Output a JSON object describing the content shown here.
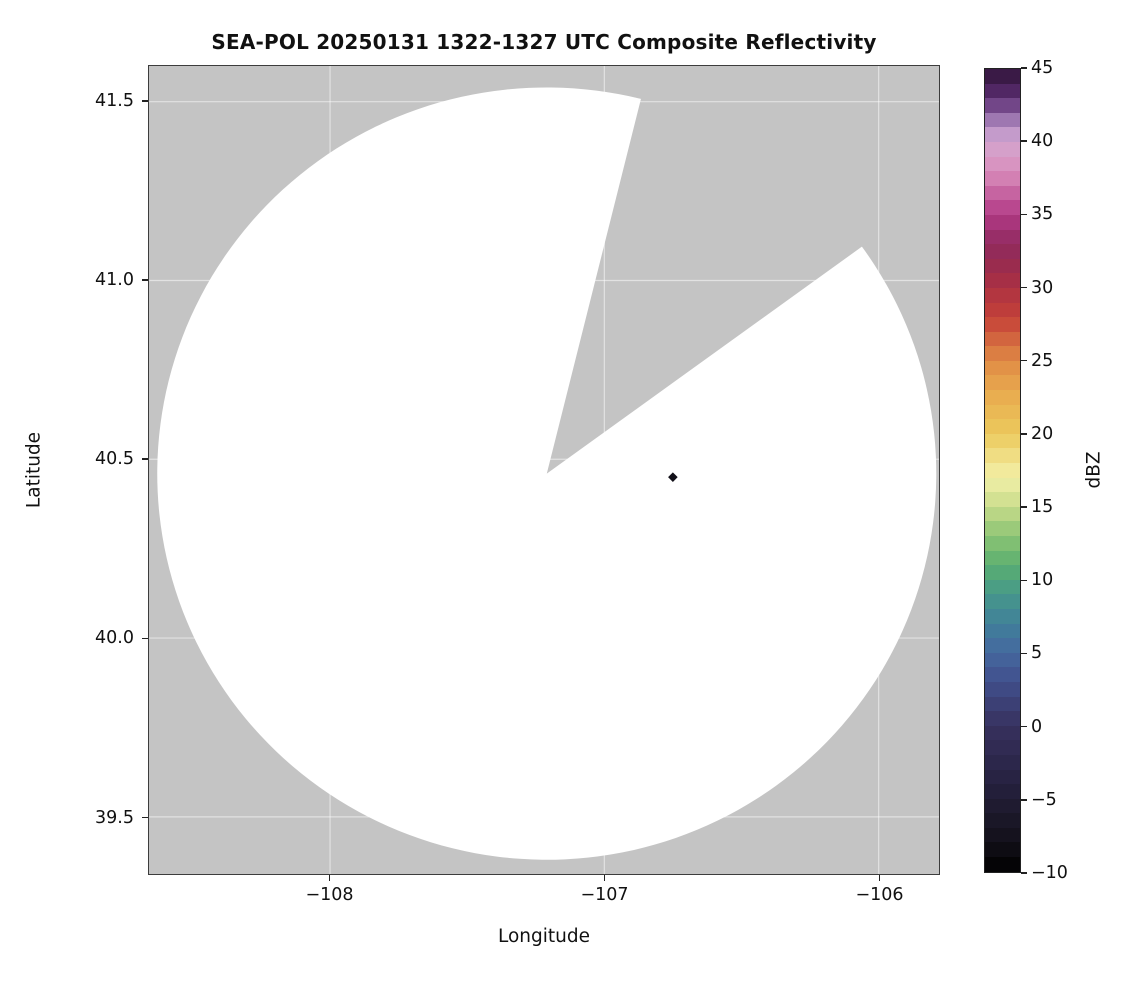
{
  "chart_data": {
    "type": "heatmap",
    "title": "SEA-POL 20250131 1322-1327 UTC Composite Reflectivity",
    "xlabel": "Longitude",
    "ylabel": "Latitude",
    "xlim": [
      -108.66,
      -105.78
    ],
    "ylim": [
      39.34,
      41.6
    ],
    "xtick_values": [
      -108,
      -107,
      -106
    ],
    "xtick_labels": [
      "−108",
      "−107",
      "−106"
    ],
    "ytick_values": [
      39.5,
      40.0,
      40.5,
      41.0,
      41.5
    ],
    "ytick_labels": [
      "39.5",
      "40.0",
      "40.5",
      "41.0",
      "41.5"
    ],
    "grid": true,
    "gridline_color": "rgba(255,255,255,0.5)",
    "radar_coverage": {
      "center_lon": -107.21,
      "center_lat": 40.46,
      "radius_lon_deg": 1.42,
      "radius_lat_deg": 1.08,
      "blocked_sector_azimuth_deg": [
        14,
        54
      ],
      "coverage_fill_color": "#ffffff",
      "nodata_color": "#c4c4c4"
    },
    "echo_points": [
      {
        "lon": -106.75,
        "lat": 40.45,
        "color": "#121019",
        "approx_dbz": -10
      }
    ],
    "colorbar": {
      "label": "dBZ",
      "min": -10,
      "max": 45,
      "ticks": [
        -10,
        -5,
        0,
        5,
        10,
        15,
        20,
        25,
        30,
        35,
        40,
        45
      ],
      "tick_labels": [
        "−10",
        "−5",
        "0",
        "5",
        "10",
        "15",
        "20",
        "25",
        "30",
        "35",
        "40",
        "45"
      ],
      "stops": [
        {
          "value": -10,
          "color": "#000000"
        },
        {
          "value": -8,
          "color": "#121019"
        },
        {
          "value": -5,
          "color": "#211d35"
        },
        {
          "value": -3,
          "color": "#2a2547"
        },
        {
          "value": 0,
          "color": "#37315e"
        },
        {
          "value": 3,
          "color": "#414f8c"
        },
        {
          "value": 5,
          "color": "#45689f"
        },
        {
          "value": 7,
          "color": "#40809a"
        },
        {
          "value": 9,
          "color": "#46988a"
        },
        {
          "value": 11,
          "color": "#5aae70"
        },
        {
          "value": 13,
          "color": "#8cc474"
        },
        {
          "value": 15,
          "color": "#c8dc8a"
        },
        {
          "value": 17,
          "color": "#f3f0a9"
        },
        {
          "value": 20,
          "color": "#ecc95c"
        },
        {
          "value": 23,
          "color": "#e8a94e"
        },
        {
          "value": 25,
          "color": "#e08a45"
        },
        {
          "value": 28,
          "color": "#c44038"
        },
        {
          "value": 30,
          "color": "#ad3242"
        },
        {
          "value": 31,
          "color": "#9e2c49"
        },
        {
          "value": 33,
          "color": "#8f2a5e"
        },
        {
          "value": 35,
          "color": "#b23a86"
        },
        {
          "value": 38,
          "color": "#d98ebc"
        },
        {
          "value": 40,
          "color": "#d3a6cf"
        },
        {
          "value": 41,
          "color": "#b48fc6"
        },
        {
          "value": 43,
          "color": "#5c2d73"
        },
        {
          "value": 45,
          "color": "#2e1437"
        }
      ]
    }
  }
}
